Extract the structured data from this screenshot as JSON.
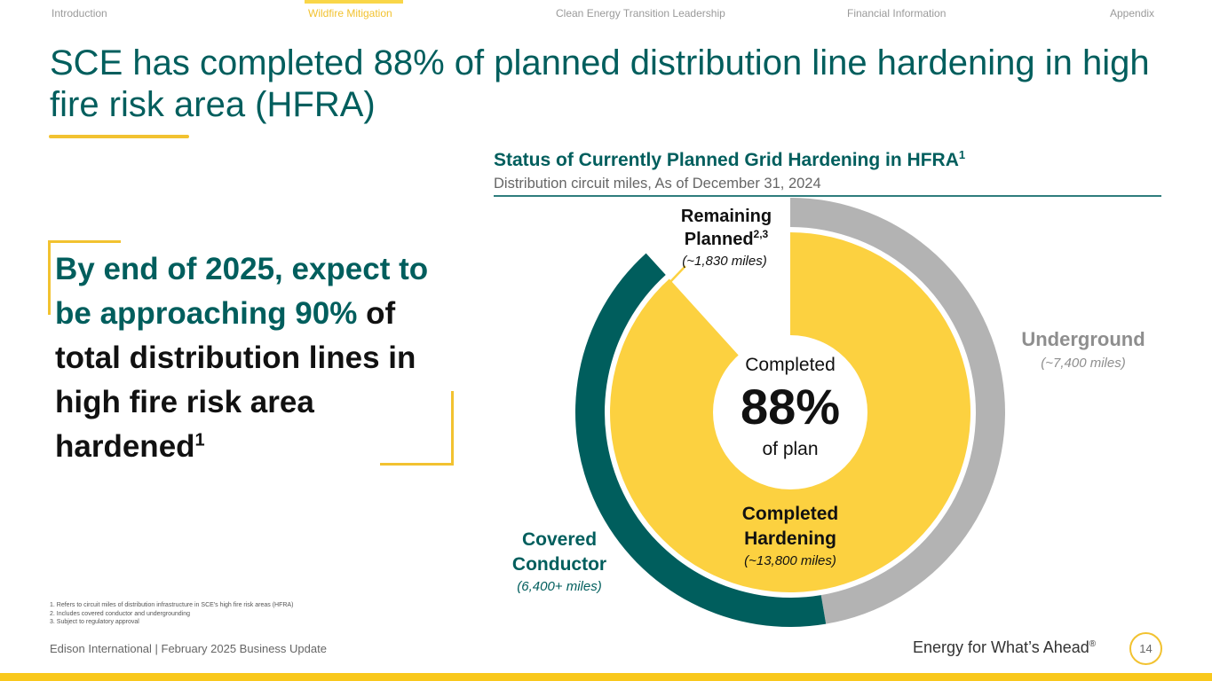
{
  "nav": {
    "items": [
      {
        "label": "Introduction",
        "active": false
      },
      {
        "label": "Wildfire Mitigation",
        "active": true
      },
      {
        "label": "Clean Energy Transition Leadership",
        "active": false
      },
      {
        "label": "Financial Information",
        "active": false
      },
      {
        "label": "Appendix",
        "active": false
      }
    ]
  },
  "title": "SCE has completed 88% of planned distribution line hardening in high fire risk area (HFRA)",
  "callout": {
    "highlight": "By end of 2025, expect to be approaching 90%",
    "rest": "of total distribution lines in high fire risk area hardened",
    "footnote_ref": "1"
  },
  "chart_data": {
    "type": "pie",
    "title": "Status of Currently Planned Grid Hardening in HFRA",
    "title_footnote": "1",
    "subtitle": "Distribution circuit miles, As of December 31, 2024",
    "inner_ring": [
      {
        "label": "Completed Hardening",
        "value": 13800,
        "value_label": "(~13,800 miles)",
        "color": "#fcd140"
      },
      {
        "label": "Remaining Planned",
        "footnote": "2,3",
        "value": 1830,
        "value_label": "(~1,830 miles)",
        "color": "#ffffff"
      }
    ],
    "outer_ring": [
      {
        "label": "Underground",
        "value": 7400,
        "value_label": "(~7,400 miles)",
        "color": "#b3b3b3"
      },
      {
        "label": "Covered Conductor",
        "value": 6400,
        "value_label": "(6,400+ miles)",
        "color": "#005e5d"
      }
    ],
    "center": {
      "top": "Completed",
      "value": "88%",
      "bottom": "of plan"
    }
  },
  "footnotes": [
    "1.   Refers to circuit miles of distribution infrastructure in SCE's high fire risk areas (HFRA)",
    "2.   Includes covered conductor and undergrounding",
    "3.   Subject to regulatory approval"
  ],
  "footer": {
    "left": "Edison International |  February 2025 Business Update",
    "tagline": "Energy for What’s Ahead",
    "tagline_mark": "®",
    "page": "14"
  },
  "colors": {
    "teal": "#005e5d",
    "gold": "#fcd140",
    "accent_yellow": "#f2c230",
    "gray": "#b3b3b3"
  }
}
